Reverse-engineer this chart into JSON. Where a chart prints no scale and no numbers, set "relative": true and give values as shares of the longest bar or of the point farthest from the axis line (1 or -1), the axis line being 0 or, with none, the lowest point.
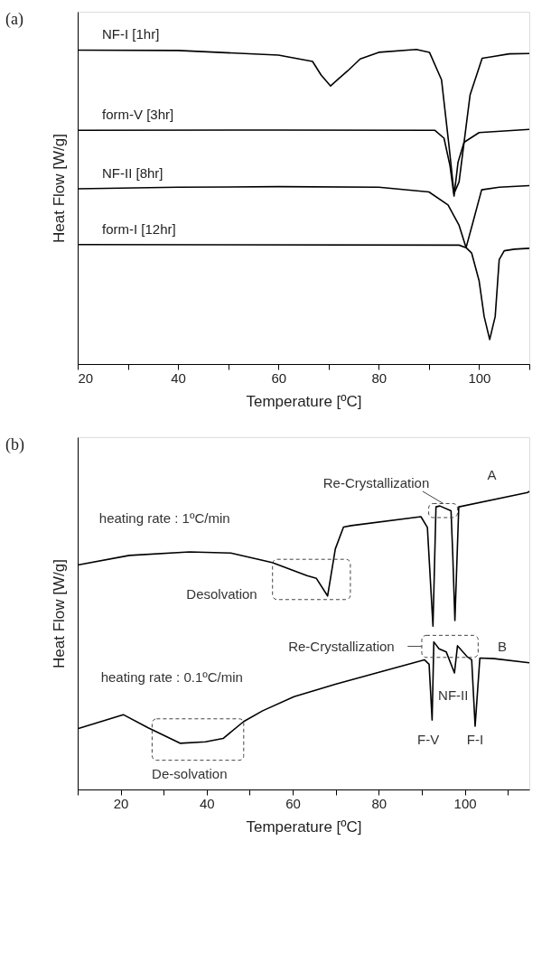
{
  "chart_data": [
    {
      "type": "line",
      "title": "(a)",
      "xlabel": "Temperature [ºC]",
      "ylabel": "Heat Flow [W/g]",
      "relative": true,
      "tick_labels": "x",
      "xlim": [
        20,
        110
      ],
      "xticks": [
        20,
        {
          "value": 30,
          "label": null
        },
        40,
        {
          "value": 50,
          "label": null
        },
        60,
        {
          "value": 70,
          "label": null
        },
        80,
        {
          "value": 90,
          "label": null
        },
        100,
        {
          "value": 110,
          "label": null
        }
      ],
      "series": [
        {
          "name": "NF-I [1hr]",
          "color": "#000000",
          "x": [
            20,
            40,
            60,
            66.8,
            68.5,
            70.4,
            72,
            73.8,
            76.3,
            80,
            87.5,
            90.1,
            92.5,
            94,
            95,
            96,
            98.2,
            100.6,
            102.6,
            106,
            110
          ],
          "values": [
            0.998,
            0.997,
            0.982,
            0.962,
            0.919,
            0.884,
            0.907,
            0.932,
            0.97,
            0.991,
            1.0,
            0.991,
            0.904,
            0.693,
            0.542,
            0.579,
            0.856,
            0.972,
            0.977,
            0.986,
            0.987
          ]
        },
        {
          "name": "form-V [3hr]",
          "color": "#000000",
          "x": [
            20,
            60,
            91.2,
            93,
            94.2,
            95,
            95.8,
            97,
            100,
            110
          ],
          "values": [
            0.743,
            0.744,
            0.743,
            0.718,
            0.63,
            0.534,
            0.642,
            0.705,
            0.736,
            0.746
          ]
        },
        {
          "name": "NF-II [8hr]",
          "color": "#000000",
          "x": [
            20,
            40,
            60,
            80,
            90,
            93.8,
            96,
            97.4,
            98.6,
            100.5,
            104,
            110
          ],
          "values": [
            0.557,
            0.562,
            0.564,
            0.562,
            0.547,
            0.506,
            0.441,
            0.37,
            0.441,
            0.554,
            0.562,
            0.567
          ]
        },
        {
          "name": "form-I [12hr]",
          "color": "#000000",
          "x": [
            20,
            96,
            97.4,
            98.5,
            100,
            101,
            102.1,
            103.2,
            104,
            105,
            107,
            110
          ],
          "values": [
            0.38,
            0.378,
            0.37,
            0.353,
            0.264,
            0.151,
            0.078,
            0.151,
            0.332,
            0.36,
            0.365,
            0.368
          ]
        }
      ]
    },
    {
      "type": "line",
      "title": "(b)",
      "xlabel": "Temperature [ºC]",
      "ylabel": "Heat Flow [W/g]",
      "relative": true,
      "tick_labels": "x",
      "xlim": [
        10,
        115
      ],
      "xticks": [
        {
          "value": 10,
          "label": null
        },
        20,
        {
          "value": 30,
          "label": null
        },
        40,
        {
          "value": 50,
          "label": null
        },
        60,
        {
          "value": 70,
          "label": null
        },
        80,
        {
          "value": 90,
          "label": null
        },
        100,
        {
          "value": 110,
          "label": null
        }
      ],
      "series": [
        {
          "color": "#000000",
          "x": [
            10,
            22,
            36,
            45.6,
            55.2,
            63.3,
            65.5,
            68.1,
            69.9,
            71.8,
            73.6,
            89.8,
            91.3,
            92.6,
            93.3,
            94.2,
            96.8,
            97.2,
            97.7,
            98.6,
            114.6,
            115
          ],
          "values": [
            0.753,
            0.785,
            0.797,
            0.793,
            0.761,
            0.717,
            0.708,
            0.649,
            0.807,
            0.88,
            0.885,
            0.915,
            0.879,
            0.548,
            0.948,
            0.951,
            0.935,
            0.788,
            0.567,
            0.948,
            0.996,
            1.0
          ]
        },
        {
          "color": "#000000",
          "x": [
            10,
            20.6,
            26.4,
            33.8,
            39.7,
            43.8,
            48.6,
            53,
            60.3,
            69.9,
            81,
            90.6,
            91.7,
            92.4,
            92.8,
            94,
            95.7,
            97.6,
            98.3,
            100.5,
            101.6,
            102.4,
            103.5,
            106.8,
            115
          ],
          "values": [
            0.204,
            0.251,
            0.207,
            0.155,
            0.16,
            0.171,
            0.228,
            0.264,
            0.311,
            0.353,
            0.397,
            0.435,
            0.42,
            0.233,
            0.495,
            0.472,
            0.461,
            0.391,
            0.482,
            0.446,
            0.435,
            0.212,
            0.441,
            0.439,
            0.425
          ]
        }
      ],
      "annotations": [
        "heating rate : 1ºC/min",
        "Desolvation",
        "Re-Crystallization",
        "A",
        "Re-Crystallization",
        "B",
        "heating rate : 0.1ºC/min",
        "NF-II",
        "F-V",
        "F-I",
        "De-solvation"
      ]
    }
  ]
}
